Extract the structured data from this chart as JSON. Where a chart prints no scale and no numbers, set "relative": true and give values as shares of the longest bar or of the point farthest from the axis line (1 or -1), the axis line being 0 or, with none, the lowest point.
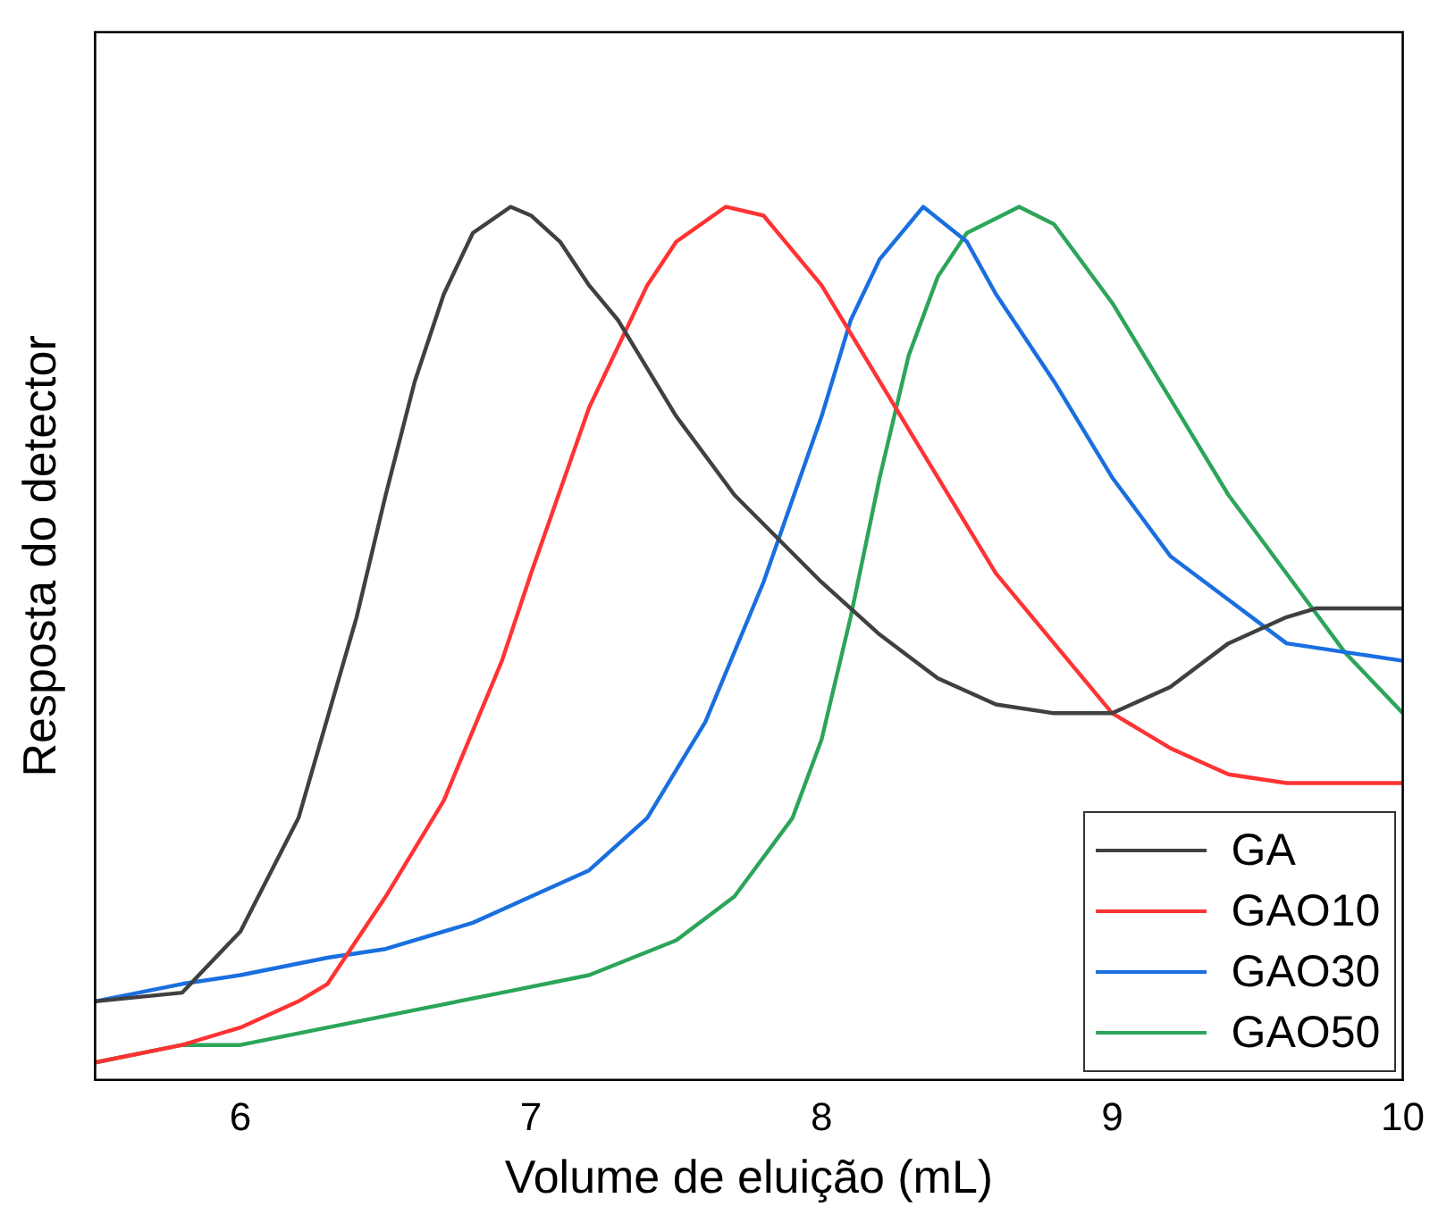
{
  "chart_data": {
    "type": "line",
    "xlabel": "Volume de eluição (mL)",
    "ylabel": "Resposta do detector",
    "relative": true,
    "xlim": [
      5.5,
      10
    ],
    "xticks": [
      6,
      7,
      8,
      9,
      10
    ],
    "grid": false,
    "legend": "bottom right",
    "marker": "none",
    "line_style": "solid",
    "series": [
      {
        "name": "GA",
        "color": "#404040",
        "x": [
          5.5,
          5.8,
          6.0,
          6.2,
          6.4,
          6.5,
          6.6,
          6.7,
          6.8,
          6.93,
          7.0,
          7.1,
          7.2,
          7.3,
          7.5,
          7.7,
          8.0,
          8.2,
          8.4,
          8.6,
          8.8,
          9.0,
          9.2,
          9.4,
          9.6,
          9.7,
          9.85,
          10
        ],
        "values": [
          0.09,
          0.1,
          0.17,
          0.3,
          0.53,
          0.67,
          0.8,
          0.9,
          0.97,
          1,
          0.99,
          0.96,
          0.91,
          0.87,
          0.76,
          0.67,
          0.57,
          0.51,
          0.46,
          0.43,
          0.42,
          0.42,
          0.45,
          0.5,
          0.53,
          0.54,
          0.54,
          0.54
        ]
      },
      {
        "name": "GAO10",
        "color": "#ff3333",
        "x": [
          5.5,
          5.8,
          6.0,
          6.2,
          6.3,
          6.5,
          6.7,
          6.9,
          7.0,
          7.2,
          7.4,
          7.5,
          7.67,
          7.8,
          8.0,
          8.2,
          8.4,
          8.6,
          8.8,
          9.0,
          9.2,
          9.4,
          9.6,
          9.8,
          10
        ],
        "values": [
          0.02,
          0.04,
          0.06,
          0.09,
          0.11,
          0.21,
          0.32,
          0.48,
          0.58,
          0.77,
          0.91,
          0.96,
          1,
          0.99,
          0.91,
          0.8,
          0.69,
          0.58,
          0.5,
          0.42,
          0.38,
          0.35,
          0.34,
          0.34,
          0.34
        ]
      },
      {
        "name": "GAO30",
        "color": "#1a6fdf",
        "x": [
          5.5,
          5.8,
          6.0,
          6.3,
          6.5,
          6.8,
          7.0,
          7.2,
          7.4,
          7.6,
          7.8,
          8.0,
          8.1,
          8.2,
          8.35,
          8.5,
          8.6,
          8.8,
          9.0,
          9.2,
          9.4,
          9.6,
          9.8,
          10
        ],
        "values": [
          0.09,
          0.11,
          0.12,
          0.14,
          0.15,
          0.18,
          0.21,
          0.24,
          0.3,
          0.41,
          0.57,
          0.76,
          0.87,
          0.94,
          1,
          0.96,
          0.9,
          0.8,
          0.69,
          0.6,
          0.55,
          0.5,
          0.49,
          0.48
        ]
      },
      {
        "name": "GAO50",
        "color": "#2ca55a",
        "x": [
          5.5,
          5.8,
          6.0,
          6.3,
          6.6,
          6.9,
          7.2,
          7.5,
          7.7,
          7.9,
          8.0,
          8.1,
          8.2,
          8.3,
          8.4,
          8.5,
          8.68,
          8.8,
          9.0,
          9.2,
          9.4,
          9.6,
          9.8,
          10
        ],
        "values": [
          0.02,
          0.04,
          0.04,
          0.06,
          0.08,
          0.1,
          0.12,
          0.16,
          0.21,
          0.3,
          0.39,
          0.53,
          0.69,
          0.83,
          0.92,
          0.97,
          1,
          0.98,
          0.89,
          0.78,
          0.67,
          0.58,
          0.49,
          0.42
        ]
      }
    ]
  }
}
